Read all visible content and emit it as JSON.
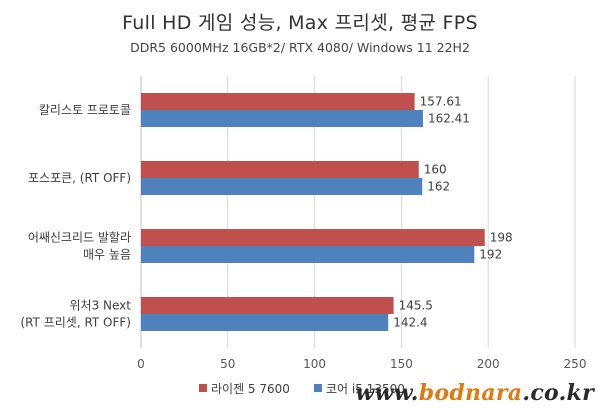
{
  "chart_data": {
    "type": "bar",
    "orientation": "horizontal",
    "title": "Full HD 게임 성능, Max 프리셋, 평균 FPS",
    "subtitle": "DDR5 6000MHz 16GB*2/ RTX 4080/ Windows 11 22H2",
    "categories": [
      [
        "칼리스토 프로토콜"
      ],
      [
        "포스포큰, (RT OFF)"
      ],
      [
        "어쌔신크리드 발할라",
        "매우 높음"
      ],
      [
        "위처3 Next",
        "(RT 프리셋, RT OFF)"
      ]
    ],
    "series": [
      {
        "name": "라이젠 5 7600",
        "color": "#c0504d",
        "values": [
          157.61,
          160,
          198,
          145.5
        ]
      },
      {
        "name": "코어 i5 13500",
        "color": "#4f81bd",
        "values": [
          162.41,
          162,
          192,
          142.4
        ]
      }
    ],
    "value_labels": [
      [
        "157.61",
        "160",
        "198",
        "145.5"
      ],
      [
        "162.41",
        "162",
        "192",
        "142.4"
      ]
    ],
    "xlim": [
      0,
      250
    ],
    "xticks": [
      0,
      50,
      100,
      150,
      200,
      250
    ],
    "grid": true,
    "legend": "bottom"
  },
  "watermark": {
    "prefix": "www.",
    "brand": "bodnara",
    "suffix": ".co.kr"
  }
}
